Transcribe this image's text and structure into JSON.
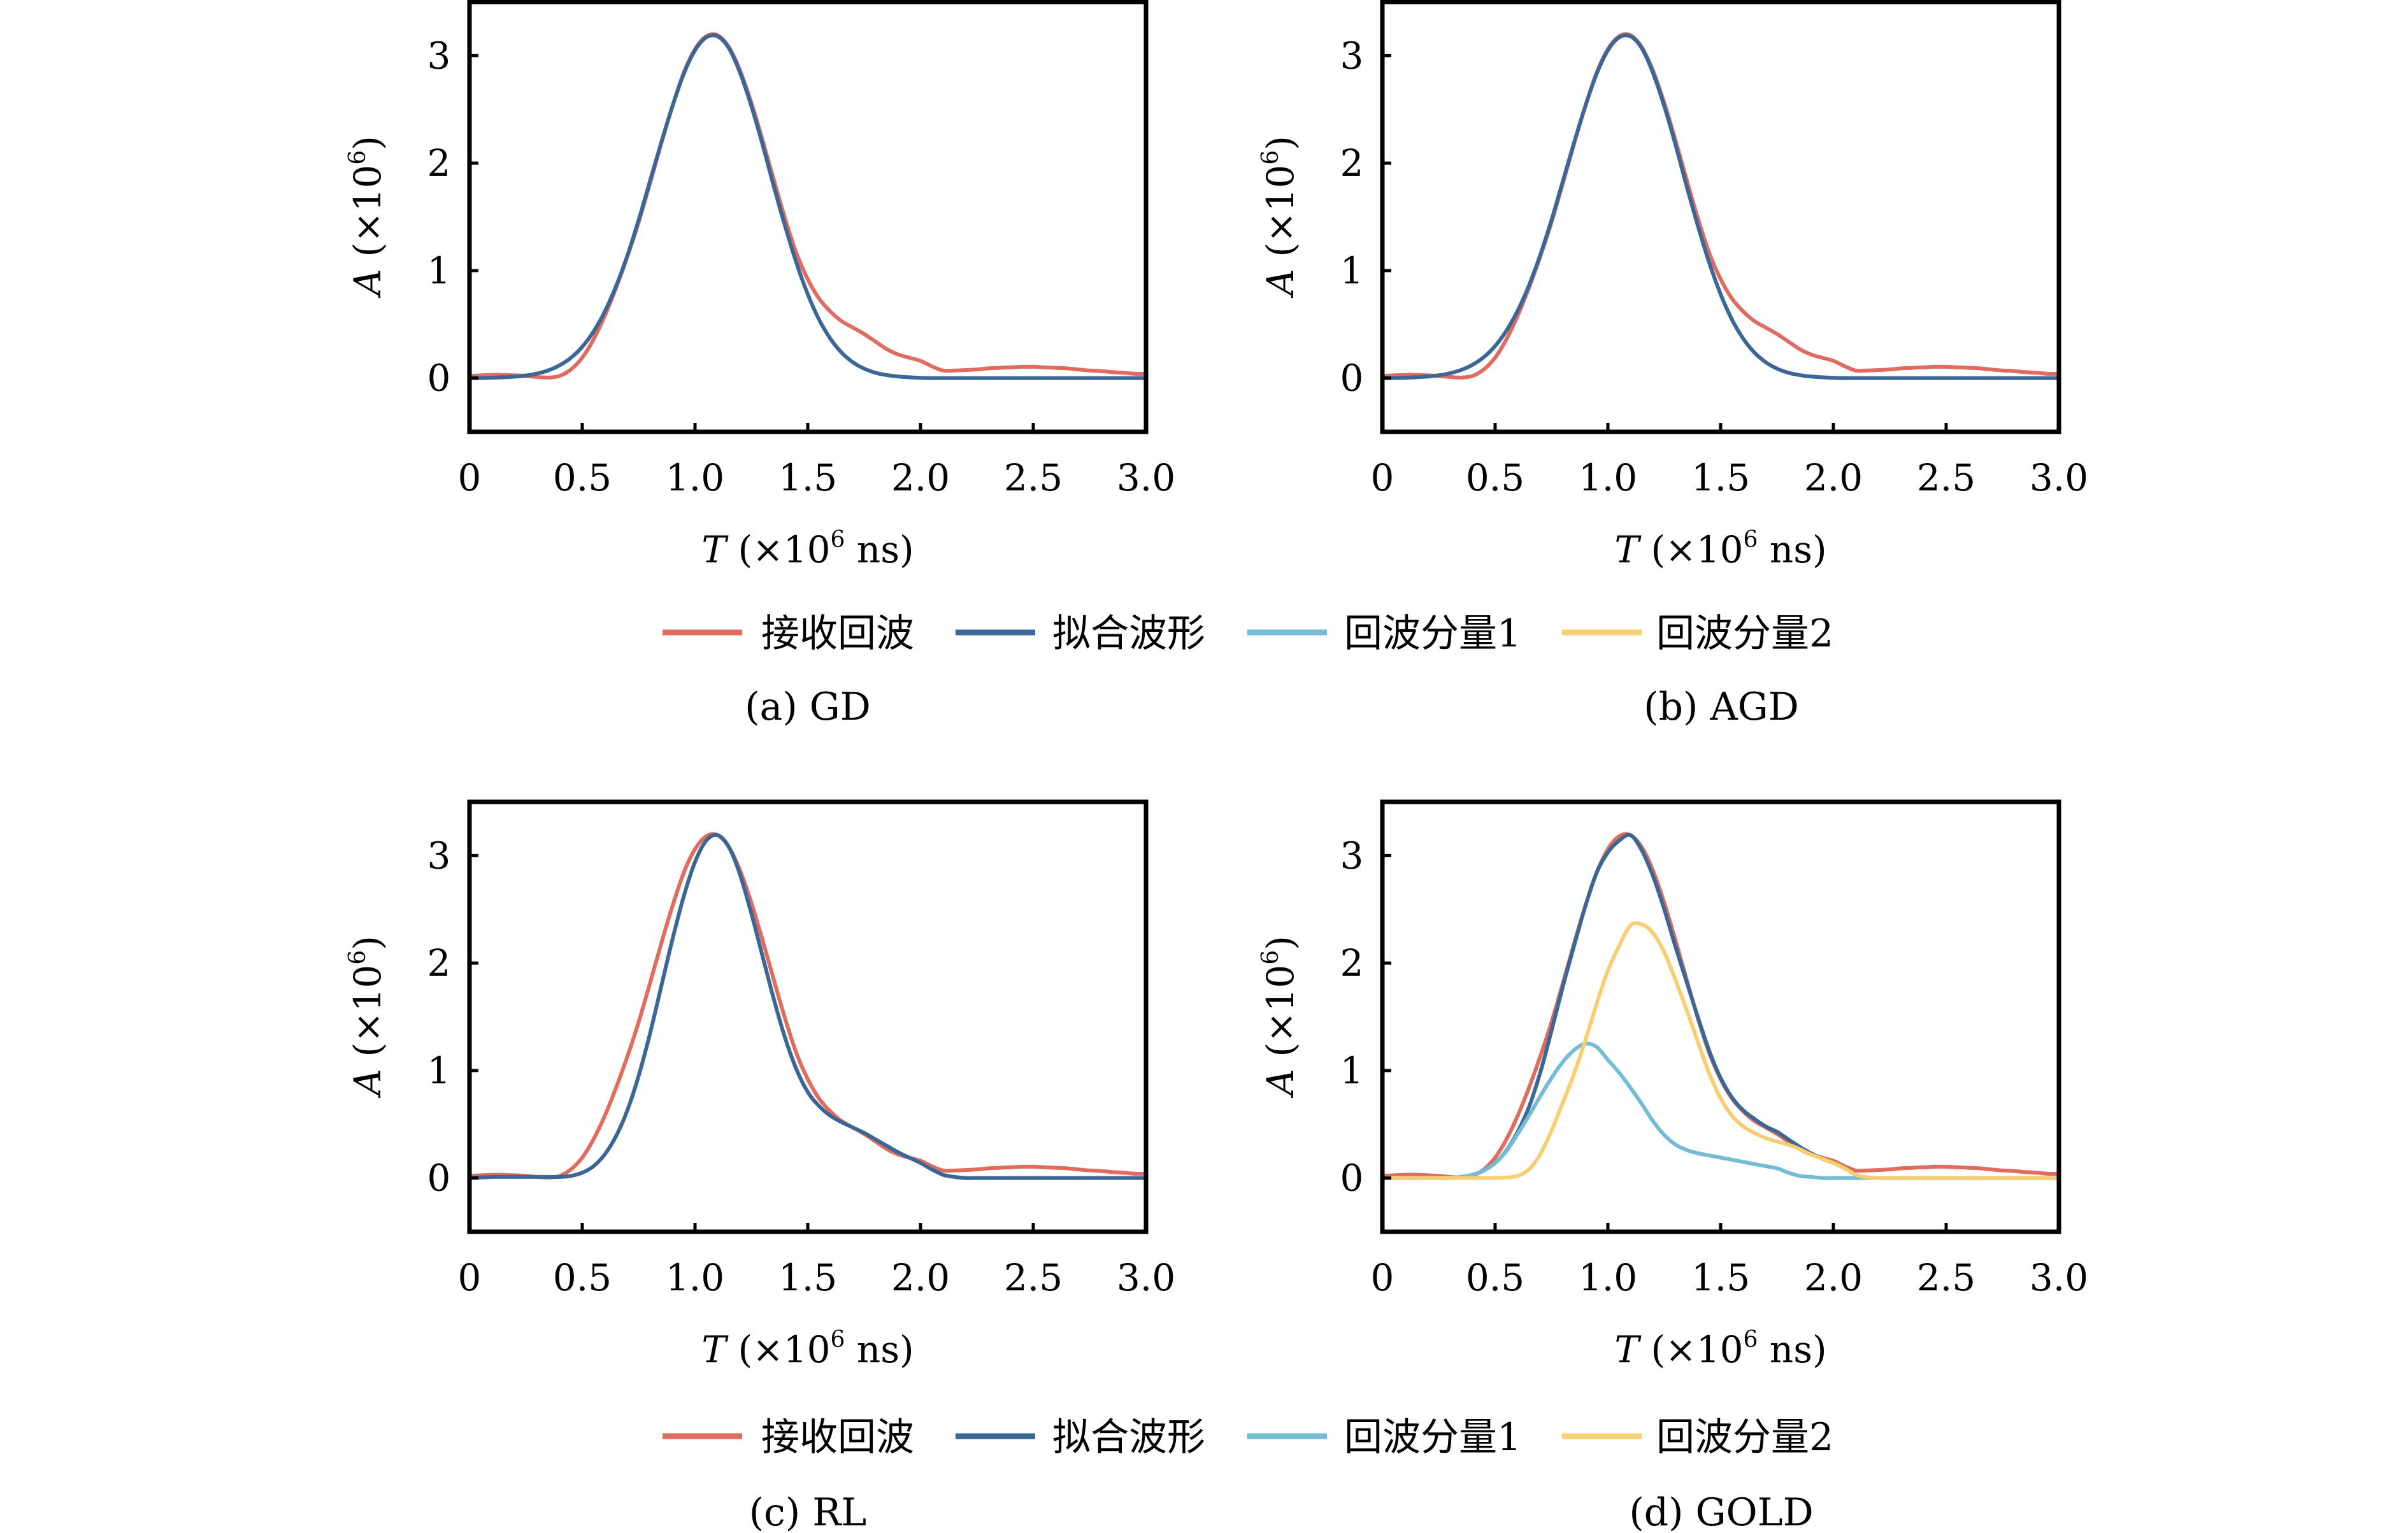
{
  "legend": {
    "items": [
      {
        "key": "received",
        "label": "接收回波",
        "color": "#e06b5f"
      },
      {
        "key": "fitted",
        "label": "拟合波形",
        "color": "#3b6796"
      },
      {
        "key": "component1",
        "label": "回波分量1",
        "color": "#74bbd6"
      },
      {
        "key": "component2",
        "label": "回波分量2",
        "color": "#f7cf72"
      }
    ]
  },
  "chart_data": [
    {
      "type": "line",
      "caption": "(a) GD",
      "xlabel": "T (×10⁶ ns)",
      "xlabel_parts": {
        "var": "T",
        "open": " (×10",
        "sup": "6",
        "close": " ns)"
      },
      "ylabel": "A (×10⁶)",
      "ylabel_parts": {
        "var": "A",
        "open": " (×10",
        "sup": "6",
        "close": ")"
      },
      "xlim": [
        0,
        3.0
      ],
      "ylim": [
        -0.5,
        3.5
      ],
      "xticks": [
        0,
        0.5,
        1.0,
        1.5,
        2.0,
        2.5,
        3.0
      ],
      "xtick_labels": [
        "0",
        "0.5",
        "1.0",
        "1.5",
        "2.0",
        "2.5",
        "3.0"
      ],
      "yticks": [
        0,
        1,
        2,
        3
      ],
      "ytick_labels": [
        "0",
        "1",
        "2",
        "3"
      ],
      "grid": false,
      "series_keys": [
        "received",
        "fitted"
      ]
    },
    {
      "type": "line",
      "caption": "(b) AGD",
      "xlabel": "T (×10⁶ ns)",
      "xlabel_parts": {
        "var": "T",
        "open": " (×10",
        "sup": "6",
        "close": " ns)"
      },
      "ylabel": "A (×10⁶)",
      "ylabel_parts": {
        "var": "A",
        "open": " (×10",
        "sup": "6",
        "close": ")"
      },
      "xlim": [
        0,
        3.0
      ],
      "ylim": [
        -0.5,
        3.5
      ],
      "xticks": [
        0,
        0.5,
        1.0,
        1.5,
        2.0,
        2.5,
        3.0
      ],
      "xtick_labels": [
        "0",
        "0.5",
        "1.0",
        "1.5",
        "2.0",
        "2.5",
        "3.0"
      ],
      "yticks": [
        0,
        1,
        2,
        3
      ],
      "ytick_labels": [
        "0",
        "1",
        "2",
        "3"
      ],
      "grid": false,
      "series_keys": [
        "received",
        "fitted"
      ]
    },
    {
      "type": "line",
      "caption": "(c) RL",
      "xlabel": "T (×10⁶ ns)",
      "xlabel_parts": {
        "var": "T",
        "open": " (×10",
        "sup": "6",
        "close": " ns)"
      },
      "ylabel": "A (×10⁶)",
      "ylabel_parts": {
        "var": "A",
        "open": " (×10",
        "sup": "6",
        "close": ")"
      },
      "xlim": [
        0,
        3.0
      ],
      "ylim": [
        -0.5,
        3.5
      ],
      "xticks": [
        0,
        0.5,
        1.0,
        1.5,
        2.0,
        2.5,
        3.0
      ],
      "xtick_labels": [
        "0",
        "0.5",
        "1.0",
        "1.5",
        "2.0",
        "2.5",
        "3.0"
      ],
      "yticks": [
        0,
        1,
        2,
        3
      ],
      "ytick_labels": [
        "0",
        "1",
        "2",
        "3"
      ],
      "grid": false,
      "series_keys": [
        "received",
        "fitted"
      ]
    },
    {
      "type": "line",
      "caption": "(d) GOLD",
      "xlabel": "T (×10⁶ ns)",
      "xlabel_parts": {
        "var": "T",
        "open": " (×10",
        "sup": "6",
        "close": " ns)"
      },
      "ylabel": "A (×10⁶)",
      "ylabel_parts": {
        "var": "A",
        "open": " (×10",
        "sup": "6",
        "close": ")"
      },
      "xlim": [
        0,
        3.0
      ],
      "ylim": [
        -0.5,
        3.5
      ],
      "xticks": [
        0,
        0.5,
        1.0,
        1.5,
        2.0,
        2.5,
        3.0
      ],
      "xtick_labels": [
        "0",
        "0.5",
        "1.0",
        "1.5",
        "2.0",
        "2.5",
        "3.0"
      ],
      "yticks": [
        0,
        1,
        2,
        3
      ],
      "ytick_labels": [
        "0",
        "1",
        "2",
        "3"
      ],
      "grid": false,
      "series_keys": [
        "received",
        "fitted",
        "component1",
        "component2"
      ]
    }
  ],
  "x": [
    0,
    0.05,
    0.1,
    0.15,
    0.2,
    0.25,
    0.3,
    0.35,
    0.4,
    0.45,
    0.5,
    0.55,
    0.6,
    0.65,
    0.7,
    0.75,
    0.8,
    0.85,
    0.9,
    0.95,
    1.0,
    1.05,
    1.1,
    1.15,
    1.2,
    1.25,
    1.3,
    1.35,
    1.4,
    1.45,
    1.5,
    1.55,
    1.6,
    1.65,
    1.7,
    1.75,
    1.8,
    1.85,
    1.9,
    1.95,
    2.0,
    2.05,
    2.1,
    2.15,
    2.2,
    2.25,
    2.3,
    2.35,
    2.4,
    2.45,
    2.5,
    2.55,
    2.6,
    2.65,
    2.7,
    2.75,
    2.8,
    2.85,
    2.9,
    2.95,
    3.0
  ],
  "series_values": {
    "received": [
      0.02,
      0.025,
      0.03,
      0.03,
      0.025,
      0.02,
      0.01,
      0.005,
      0.02,
      0.08,
      0.19,
      0.36,
      0.58,
      0.84,
      1.13,
      1.45,
      1.81,
      2.18,
      2.53,
      2.84,
      3.06,
      3.18,
      3.19,
      3.08,
      2.86,
      2.56,
      2.21,
      1.84,
      1.48,
      1.16,
      0.92,
      0.74,
      0.62,
      0.53,
      0.47,
      0.41,
      0.34,
      0.27,
      0.22,
      0.19,
      0.16,
      0.11,
      0.07,
      0.07,
      0.075,
      0.08,
      0.09,
      0.095,
      0.1,
      0.105,
      0.105,
      0.1,
      0.095,
      0.09,
      0.08,
      0.07,
      0.065,
      0.055,
      0.05,
      0.04,
      0.04
    ],
    "fitted_a": [
      0,
      0,
      0.003,
      0.007,
      0.013,
      0.024,
      0.042,
      0.072,
      0.119,
      0.189,
      0.291,
      0.432,
      0.619,
      0.855,
      1.14,
      1.47,
      1.83,
      2.19,
      2.53,
      2.83,
      3.05,
      3.17,
      3.18,
      3.07,
      2.84,
      2.53,
      2.17,
      1.78,
      1.41,
      1.07,
      0.78,
      0.545,
      0.367,
      0.237,
      0.147,
      0.088,
      0.05,
      0.028,
      0.015,
      0.007,
      0.002,
      0,
      0,
      0,
      0,
      0,
      0,
      0,
      0,
      0,
      0,
      0,
      0,
      0,
      0,
      0,
      0,
      0,
      0,
      0,
      0
    ],
    "fitted_b": [
      0,
      0.001,
      0.003,
      0.007,
      0.014,
      0.026,
      0.045,
      0.076,
      0.124,
      0.195,
      0.298,
      0.44,
      0.627,
      0.862,
      1.145,
      1.47,
      1.83,
      2.19,
      2.53,
      2.83,
      3.05,
      3.17,
      3.18,
      3.07,
      2.84,
      2.53,
      2.17,
      1.78,
      1.41,
      1.07,
      0.78,
      0.545,
      0.367,
      0.237,
      0.147,
      0.088,
      0.05,
      0.028,
      0.015,
      0.007,
      0.002,
      0,
      0,
      0,
      0,
      0,
      0,
      0,
      0,
      0,
      0,
      0,
      0,
      0,
      0,
      0,
      0,
      0,
      0,
      0,
      0
    ],
    "fitted_c": [
      0,
      0.005,
      0.01,
      0.01,
      0.01,
      0.01,
      0.01,
      0.01,
      0.01,
      0.02,
      0.05,
      0.11,
      0.22,
      0.39,
      0.63,
      0.95,
      1.34,
      1.78,
      2.22,
      2.62,
      2.94,
      3.14,
      3.19,
      3.08,
      2.82,
      2.46,
      2.06,
      1.66,
      1.3,
      1.01,
      0.8,
      0.67,
      0.58,
      0.52,
      0.47,
      0.42,
      0.36,
      0.3,
      0.24,
      0.19,
      0.14,
      0.08,
      0.03,
      0.01,
      0,
      0,
      0,
      0,
      0,
      0,
      0,
      0,
      0,
      0,
      0,
      0,
      0,
      0,
      0,
      0,
      0
    ],
    "fitted_d": [
      0,
      0,
      0,
      0,
      0,
      0,
      0,
      0.01,
      0.03,
      0.07,
      0.14,
      0.255,
      0.43,
      0.66,
      0.98,
      1.37,
      1.78,
      2.16,
      2.53,
      2.84,
      3.03,
      3.14,
      3.19,
      3.05,
      2.81,
      2.5,
      2.15,
      1.82,
      1.49,
      1.18,
      0.93,
      0.75,
      0.63,
      0.55,
      0.48,
      0.43,
      0.36,
      0.29,
      0.23,
      0.18,
      0.14,
      0.09,
      0.03,
      0.005,
      0,
      0,
      0,
      0,
      0,
      0,
      0,
      0,
      0,
      0,
      0,
      0,
      0,
      0,
      0,
      0,
      0
    ],
    "component1": [
      0,
      0,
      0,
      0,
      0,
      0,
      0,
      0.01,
      0.03,
      0.07,
      0.14,
      0.25,
      0.41,
      0.58,
      0.76,
      0.93,
      1.08,
      1.19,
      1.25,
      1.22,
      1.1,
      0.98,
      0.84,
      0.69,
      0.53,
      0.4,
      0.31,
      0.26,
      0.23,
      0.21,
      0.19,
      0.17,
      0.15,
      0.13,
      0.11,
      0.09,
      0.05,
      0.02,
      0.01,
      0,
      0,
      0,
      0,
      0,
      0,
      0,
      0,
      0,
      0,
      0,
      0,
      0,
      0,
      0,
      0,
      0,
      0,
      0,
      0,
      0,
      0
    ],
    "component2": [
      0,
      0,
      0,
      0,
      0,
      0,
      0,
      0,
      0,
      0,
      0,
      0.005,
      0.02,
      0.08,
      0.22,
      0.44,
      0.7,
      0.97,
      1.28,
      1.62,
      1.93,
      2.16,
      2.35,
      2.36,
      2.28,
      2.1,
      1.84,
      1.56,
      1.26,
      0.97,
      0.74,
      0.58,
      0.48,
      0.42,
      0.37,
      0.34,
      0.31,
      0.27,
      0.22,
      0.18,
      0.14,
      0.09,
      0.03,
      0.005,
      0,
      0,
      0,
      0,
      0,
      0,
      0,
      0,
      0,
      0,
      0,
      0,
      0,
      0,
      0,
      0,
      0
    ]
  },
  "panel_fitted_series": [
    "fitted_a",
    "fitted_b",
    "fitted_c",
    "fitted_d"
  ]
}
